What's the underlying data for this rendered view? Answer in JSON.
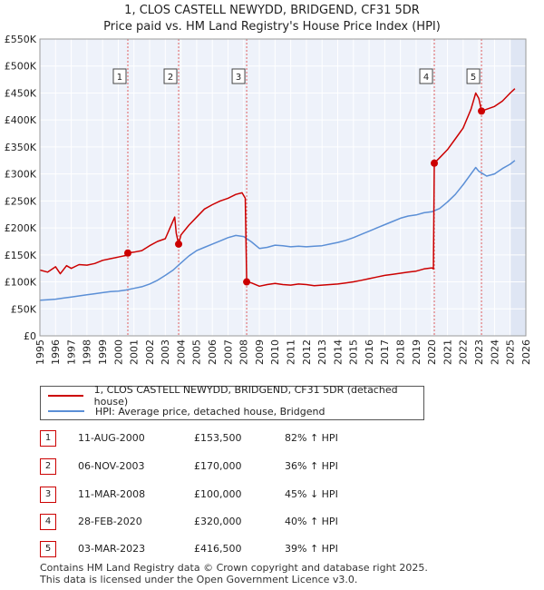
{
  "title_line1": "1, CLOS CASTELL NEWYDD, BRIDGEND, CF31 5DR",
  "title_line2": "Price paid vs. HM Land Registry's House Price Index (HPI)",
  "legend": {
    "property_label": "1, CLOS CASTELL NEWYDD, BRIDGEND, CF31 5DR (detached house)",
    "hpi_label": "HPI: Average price, detached house, Bridgend",
    "property_color": "#cc0000",
    "hpi_color": "#5b8fd6"
  },
  "transactions": [
    {
      "num": "1",
      "date": "11-AUG-2000",
      "price": "£153,500",
      "hpi": "82% ↑ HPI"
    },
    {
      "num": "2",
      "date": "06-NOV-2003",
      "price": "£170,000",
      "hpi": "36% ↑ HPI"
    },
    {
      "num": "3",
      "date": "11-MAR-2008",
      "price": "£100,000",
      "hpi": "45% ↓ HPI"
    },
    {
      "num": "4",
      "date": "28-FEB-2020",
      "price": "£320,000",
      "hpi": "40% ↑ HPI"
    },
    {
      "num": "5",
      "date": "03-MAR-2023",
      "price": "£416,500",
      "hpi": "39% ↑ HPI"
    }
  ],
  "footer_line1": "Contains HM Land Registry data © Crown copyright and database right 2025.",
  "footer_line2": "This data is licensed under the Open Government Licence v3.0.",
  "chart_data": {
    "type": "line",
    "title": "1, CLOS CASTELL NEWYDD, BRIDGEND, CF31 5DR",
    "subtitle": "Price paid vs. HM Land Registry's House Price Index (HPI)",
    "xlim": [
      1995,
      2026
    ],
    "ylim": [
      0,
      550000
    ],
    "x_ticks": [
      "1995",
      "1996",
      "1997",
      "1998",
      "1999",
      "2000",
      "2001",
      "2002",
      "2003",
      "2004",
      "2005",
      "2006",
      "2007",
      "2008",
      "2009",
      "2010",
      "2011",
      "2012",
      "2013",
      "2014",
      "2015",
      "2016",
      "2017",
      "2018",
      "2019",
      "2020",
      "2021",
      "2022",
      "2023",
      "2024",
      "2025",
      "2026"
    ],
    "y_ticks": [
      {
        "value": 0,
        "label": "£0"
      },
      {
        "value": 50000,
        "label": "£50K"
      },
      {
        "value": 100000,
        "label": "£100K"
      },
      {
        "value": 150000,
        "label": "£150K"
      },
      {
        "value": 200000,
        "label": "£200K"
      },
      {
        "value": 250000,
        "label": "£250K"
      },
      {
        "value": 300000,
        "label": "£300K"
      },
      {
        "value": 350000,
        "label": "£350K"
      },
      {
        "value": 400000,
        "label": "£400K"
      },
      {
        "value": 450000,
        "label": "£450K"
      },
      {
        "value": 500000,
        "label": "£500K"
      },
      {
        "value": 550000,
        "label": "£550K"
      }
    ],
    "grid": true,
    "shade_future_from": 2025.0,
    "sales": [
      {
        "label": "1",
        "x": 2000.61,
        "y": 153500
      },
      {
        "label": "2",
        "x": 2003.85,
        "y": 170000
      },
      {
        "label": "3",
        "x": 2008.19,
        "y": 100000
      },
      {
        "label": "4",
        "x": 2020.16,
        "y": 320000
      },
      {
        "label": "5",
        "x": 2023.17,
        "y": 416500
      }
    ],
    "series": [
      {
        "name": "1, CLOS CASTELL NEWYDD, BRIDGEND, CF31 5DR (detached house)",
        "color": "#cc0000",
        "points": [
          [
            1995.0,
            122000
          ],
          [
            1995.5,
            118000
          ],
          [
            1996.0,
            128000
          ],
          [
            1996.3,
            115000
          ],
          [
            1996.7,
            130000
          ],
          [
            1997.0,
            125000
          ],
          [
            1997.5,
            132000
          ],
          [
            1998.0,
            131000
          ],
          [
            1998.5,
            134000
          ],
          [
            1999.0,
            140000
          ],
          [
            1999.5,
            143000
          ],
          [
            2000.0,
            146000
          ],
          [
            2000.5,
            149000
          ],
          [
            2000.61,
            153500
          ],
          [
            2001.0,
            155000
          ],
          [
            2001.5,
            158000
          ],
          [
            2002.0,
            167000
          ],
          [
            2002.5,
            175000
          ],
          [
            2003.0,
            180000
          ],
          [
            2003.3,
            200000
          ],
          [
            2003.6,
            220000
          ],
          [
            2003.7,
            190000
          ],
          [
            2003.85,
            170000
          ],
          [
            2004.0,
            187000
          ],
          [
            2004.5,
            205000
          ],
          [
            2005.0,
            220000
          ],
          [
            2005.5,
            235000
          ],
          [
            2006.0,
            243000
          ],
          [
            2006.5,
            250000
          ],
          [
            2007.0,
            255000
          ],
          [
            2007.5,
            262000
          ],
          [
            2007.9,
            265000
          ],
          [
            2008.1,
            255000
          ],
          [
            2008.19,
            100000
          ],
          [
            2008.5,
            98000
          ],
          [
            2009.0,
            92000
          ],
          [
            2009.5,
            95000
          ],
          [
            2010.0,
            97000
          ],
          [
            2010.5,
            95000
          ],
          [
            2011.0,
            94000
          ],
          [
            2011.5,
            96000
          ],
          [
            2012.0,
            95000
          ],
          [
            2012.5,
            93000
          ],
          [
            2013.0,
            94000
          ],
          [
            2013.5,
            95000
          ],
          [
            2014.0,
            96000
          ],
          [
            2014.5,
            98000
          ],
          [
            2015.0,
            100000
          ],
          [
            2015.5,
            103000
          ],
          [
            2016.0,
            106000
          ],
          [
            2016.5,
            109000
          ],
          [
            2017.0,
            112000
          ],
          [
            2017.5,
            114000
          ],
          [
            2018.0,
            116000
          ],
          [
            2018.5,
            118000
          ],
          [
            2019.0,
            120000
          ],
          [
            2019.5,
            124000
          ],
          [
            2020.0,
            126000
          ],
          [
            2020.1,
            124000
          ],
          [
            2020.16,
            320000
          ],
          [
            2020.5,
            330000
          ],
          [
            2021.0,
            345000
          ],
          [
            2021.5,
            365000
          ],
          [
            2022.0,
            385000
          ],
          [
            2022.5,
            420000
          ],
          [
            2022.8,
            450000
          ],
          [
            2023.0,
            440000
          ],
          [
            2023.17,
            416500
          ],
          [
            2023.5,
            420000
          ],
          [
            2024.0,
            425000
          ],
          [
            2024.5,
            435000
          ],
          [
            2025.0,
            450000
          ],
          [
            2025.3,
            458000
          ]
        ]
      },
      {
        "name": "HPI: Average price, detached house, Bridgend",
        "color": "#5b8fd6",
        "points": [
          [
            1995.0,
            66000
          ],
          [
            1995.5,
            67000
          ],
          [
            1996.0,
            68000
          ],
          [
            1996.5,
            70000
          ],
          [
            1997.0,
            72000
          ],
          [
            1997.5,
            74000
          ],
          [
            1998.0,
            76000
          ],
          [
            1998.5,
            78000
          ],
          [
            1999.0,
            80000
          ],
          [
            1999.5,
            82000
          ],
          [
            2000.0,
            83000
          ],
          [
            2000.5,
            85000
          ],
          [
            2001.0,
            88000
          ],
          [
            2001.5,
            91000
          ],
          [
            2002.0,
            96000
          ],
          [
            2002.5,
            103000
          ],
          [
            2003.0,
            112000
          ],
          [
            2003.5,
            122000
          ],
          [
            2004.0,
            135000
          ],
          [
            2004.5,
            148000
          ],
          [
            2005.0,
            158000
          ],
          [
            2005.5,
            164000
          ],
          [
            2006.0,
            170000
          ],
          [
            2006.5,
            176000
          ],
          [
            2007.0,
            182000
          ],
          [
            2007.5,
            186000
          ],
          [
            2008.0,
            184000
          ],
          [
            2008.5,
            174000
          ],
          [
            2009.0,
            162000
          ],
          [
            2009.5,
            164000
          ],
          [
            2010.0,
            168000
          ],
          [
            2010.5,
            167000
          ],
          [
            2011.0,
            165000
          ],
          [
            2011.5,
            166000
          ],
          [
            2012.0,
            165000
          ],
          [
            2012.5,
            166000
          ],
          [
            2013.0,
            167000
          ],
          [
            2013.5,
            170000
          ],
          [
            2014.0,
            173000
          ],
          [
            2014.5,
            177000
          ],
          [
            2015.0,
            182000
          ],
          [
            2015.5,
            188000
          ],
          [
            2016.0,
            194000
          ],
          [
            2016.5,
            200000
          ],
          [
            2017.0,
            206000
          ],
          [
            2017.5,
            212000
          ],
          [
            2018.0,
            218000
          ],
          [
            2018.5,
            222000
          ],
          [
            2019.0,
            224000
          ],
          [
            2019.5,
            228000
          ],
          [
            2020.0,
            230000
          ],
          [
            2020.5,
            236000
          ],
          [
            2021.0,
            248000
          ],
          [
            2021.5,
            262000
          ],
          [
            2022.0,
            280000
          ],
          [
            2022.5,
            300000
          ],
          [
            2022.8,
            312000
          ],
          [
            2023.0,
            305000
          ],
          [
            2023.5,
            296000
          ],
          [
            2024.0,
            300000
          ],
          [
            2024.5,
            310000
          ],
          [
            2025.0,
            318000
          ],
          [
            2025.3,
            325000
          ]
        ]
      }
    ]
  }
}
